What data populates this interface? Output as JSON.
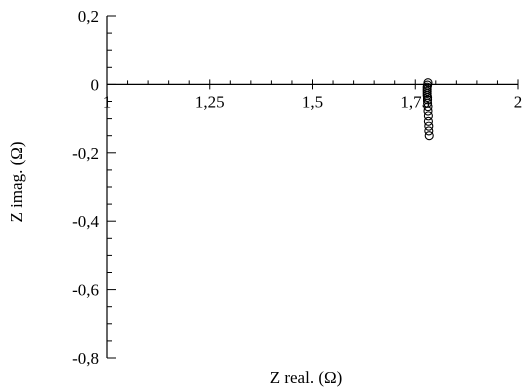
{
  "chart_data": {
    "type": "scatter",
    "title": "",
    "xlabel": "Z real. (Ω)",
    "ylabel": "Z imag. (Ω)",
    "xlim": [
      1,
      2
    ],
    "ylim": [
      -0.8,
      0.2
    ],
    "x_major_ticks": [
      1,
      1.25,
      1.5,
      1.75,
      2
    ],
    "x_tick_labels": [
      "1",
      "1,25",
      "1,5",
      "1,75",
      "2"
    ],
    "y_major_ticks": [
      0.2,
      0,
      -0.2,
      -0.4,
      -0.6,
      -0.8
    ],
    "y_tick_labels": [
      "0,2",
      "0",
      "-0,2",
      "-0,4",
      "-0,6",
      "-0,8"
    ],
    "grid": false,
    "legend": "none",
    "marker": "open-circle",
    "series": [
      {
        "points": [
          {
            "x": 1.781,
            "y": 0.005
          },
          {
            "x": 1.78,
            "y": -0.002
          },
          {
            "x": 1.779,
            "y": -0.008
          },
          {
            "x": 1.779,
            "y": -0.014
          },
          {
            "x": 1.779,
            "y": -0.02
          },
          {
            "x": 1.779,
            "y": -0.026
          },
          {
            "x": 1.779,
            "y": -0.032
          },
          {
            "x": 1.78,
            "y": -0.038
          },
          {
            "x": 1.78,
            "y": -0.045
          },
          {
            "x": 1.78,
            "y": -0.055
          },
          {
            "x": 1.781,
            "y": -0.065
          },
          {
            "x": 1.781,
            "y": -0.078
          },
          {
            "x": 1.782,
            "y": -0.092
          },
          {
            "x": 1.782,
            "y": -0.108
          },
          {
            "x": 1.783,
            "y": -0.122
          },
          {
            "x": 1.783,
            "y": -0.136
          },
          {
            "x": 1.784,
            "y": -0.15
          }
        ]
      }
    ]
  }
}
